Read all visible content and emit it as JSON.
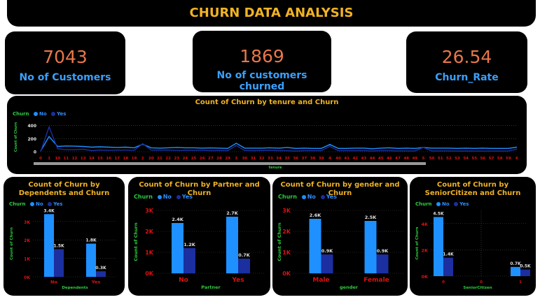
{
  "title": "CHURN DATA ANALYSIS",
  "kpis": [
    {
      "value": "7043",
      "label": "No of Customers"
    },
    {
      "value": "1869",
      "label": "No of customers churned"
    },
    {
      "value": "26.54",
      "label": "Churn_Rate"
    }
  ],
  "colors": {
    "no": "#1e90ff",
    "yes": "#1b2fa0",
    "title": "#f0b323",
    "axis_label": "#2ecc40",
    "tick": "#e01010"
  },
  "legend": {
    "title": "Churn",
    "no": "No",
    "yes": "Yes"
  },
  "tenure_chart": {
    "title": "Count of Churn by tenure and Churn",
    "ylabel": "Count of Churn",
    "xlabel": "tenure"
  },
  "dependents_chart": {
    "title": "Count of Churn by Dependents and Churn",
    "ylabel": "Count of Churn",
    "xlabel": "Dependents"
  },
  "partner_chart": {
    "title": "Count of Churn by Partner and Churn",
    "ylabel": "Count of Churn",
    "xlabel": "Partner"
  },
  "gender_chart": {
    "title": "Count of Churn by gender and Churn",
    "ylabel": "Count of Churn",
    "xlabel": "gender"
  },
  "senior_chart": {
    "title": "Count of Churn by SeniorCitizen and Churn",
    "ylabel": "Count of Churn",
    "xlabel": "SeniorCitizen"
  },
  "chart_data": [
    {
      "type": "line",
      "title": "Count of Churn by tenure and Churn",
      "xlabel": "tenure",
      "ylabel": "Count of Churn",
      "x": [
        "0",
        "1",
        "10",
        "11",
        "12",
        "13",
        "14",
        "15",
        "16",
        "17",
        "18",
        "19",
        "2",
        "20",
        "21",
        "22",
        "23",
        "24",
        "25",
        "26",
        "27",
        "28",
        "29",
        "3",
        "30",
        "31",
        "32",
        "33",
        "34",
        "35",
        "36",
        "37",
        "38",
        "39",
        "4",
        "40",
        "41",
        "42",
        "43",
        "44",
        "45",
        "46",
        "47",
        "48",
        "49",
        "5",
        "50",
        "51",
        "52",
        "53",
        "54",
        "55",
        "56",
        "57",
        "58",
        "59",
        "6"
      ],
      "yticks": [
        "0",
        "200",
        "400"
      ],
      "ylim": [
        0,
        450
      ],
      "series": [
        {
          "name": "No",
          "values": [
            11,
            233,
            80,
            88,
            85,
            80,
            70,
            75,
            70,
            65,
            70,
            60,
            115,
            60,
            55,
            60,
            65,
            60,
            60,
            55,
            58,
            55,
            50,
            130,
            55,
            55,
            55,
            60,
            55,
            65,
            50,
            55,
            50,
            50,
            110,
            50,
            50,
            55,
            55,
            45,
            55,
            60,
            50,
            55,
            50,
            65,
            55,
            55,
            55,
            50,
            55,
            50,
            55,
            50,
            50,
            50,
            70
          ]
        },
        {
          "name": "Yes",
          "values": [
            0,
            380,
            45,
            30,
            30,
            38,
            16,
            25,
            20,
            25,
            25,
            20,
            123,
            25,
            22,
            25,
            20,
            22,
            20,
            20,
            15,
            18,
            15,
            94,
            18,
            15,
            18,
            20,
            15,
            15,
            10,
            15,
            15,
            15,
            83,
            15,
            15,
            15,
            15,
            12,
            15,
            15,
            12,
            12,
            12,
            64,
            12,
            12,
            12,
            10,
            12,
            10,
            10,
            10,
            10,
            10,
            40
          ]
        }
      ]
    },
    {
      "type": "bar",
      "title": "Count of Churn by Dependents and Churn",
      "xlabel": "Dependents",
      "ylabel": "Count of Churn",
      "categories": [
        "No",
        "Yes"
      ],
      "yticks": [
        "0K",
        "1K",
        "2K",
        "3K"
      ],
      "ylim": [
        0,
        3600
      ],
      "series": [
        {
          "name": "No",
          "values": [
            3400,
            1800
          ],
          "labels": [
            "3.4K",
            "1.8K"
          ]
        },
        {
          "name": "Yes",
          "values": [
            1500,
            300
          ],
          "labels": [
            "1.5K",
            "0.3K"
          ]
        }
      ]
    },
    {
      "type": "bar",
      "title": "Count of Churn by Partner and Churn",
      "xlabel": "Partner",
      "ylabel": "Count of Churn",
      "categories": [
        "No",
        "Yes"
      ],
      "yticks": [
        "0K",
        "1K",
        "2K",
        "3K"
      ],
      "ylim": [
        0,
        3000
      ],
      "series": [
        {
          "name": "No",
          "values": [
            2400,
            2700
          ],
          "labels": [
            "2.4K",
            "2.7K"
          ]
        },
        {
          "name": "Yes",
          "values": [
            1200,
            700
          ],
          "labels": [
            "1.2K",
            "0.7K"
          ]
        }
      ]
    },
    {
      "type": "bar",
      "title": "Count of Churn by gender and Churn",
      "xlabel": "gender",
      "ylabel": "Count of Churn",
      "categories": [
        "Male",
        "Female"
      ],
      "yticks": [
        "0K",
        "1K",
        "2K",
        "3K"
      ],
      "ylim": [
        0,
        3000
      ],
      "series": [
        {
          "name": "No",
          "values": [
            2600,
            2500
          ],
          "labels": [
            "2.6K",
            "2.5K"
          ]
        },
        {
          "name": "Yes",
          "values": [
            900,
            900
          ],
          "labels": [
            "0.9K",
            "0.9K"
          ]
        }
      ]
    },
    {
      "type": "bar",
      "title": "Count of Churn by SeniorCitizen and Churn",
      "xlabel": "SeniorCitizen",
      "ylabel": "Count of Churn",
      "categories": [
        "0",
        "1"
      ],
      "xticks": [
        "0",
        "0",
        "1"
      ],
      "yticks": [
        "0K",
        "2K",
        "4K"
      ],
      "ylim": [
        0,
        5000
      ],
      "series": [
        {
          "name": "No",
          "values": [
            4500,
            700
          ],
          "labels": [
            "4.5K",
            "0.7K"
          ]
        },
        {
          "name": "Yes",
          "values": [
            1400,
            500
          ],
          "labels": [
            "1.4K",
            "0.5K"
          ]
        }
      ]
    }
  ]
}
